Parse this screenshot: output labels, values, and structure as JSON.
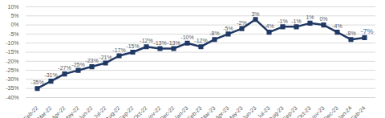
{
  "chart_data": {
    "type": "line",
    "categories": [
      "Feb-22",
      "Mar-22",
      "Apr-22",
      "May-22",
      "Jun-22",
      "Jul-22",
      "Aug-22",
      "Sep-22",
      "Oct-22",
      "Nov-22",
      "Dec-22",
      "Jan-23",
      "Feb-23",
      "Mar-23",
      "Apr-23",
      "May-23",
      "Jun-23",
      "Jul-23",
      "Aug-23",
      "Sep-23",
      "Oct-23",
      "Nov-23",
      "Dec-23",
      "Jan-24",
      "Feb-24"
    ],
    "values": [
      -35,
      -31,
      -27,
      -25,
      -23,
      -21,
      -17,
      -15,
      -12,
      -13,
      -13,
      -10,
      -12,
      -8,
      -5,
      -2,
      3,
      -4,
      -1,
      -1,
      1,
      0,
      -4,
      -8,
      -7
    ],
    "value_labels": [
      "-35%",
      "-31%",
      "-27%",
      "-25%",
      "-23%",
      "-21%",
      "-17%",
      "-15%",
      "-12%",
      "-13%",
      "-13%",
      "-10%",
      "-12%",
      "-8%",
      "-5%",
      "-2%",
      "3%",
      "-4%",
      "-1%",
      "-1%",
      "1%",
      "0%",
      "-4%",
      "-8%",
      "-7%"
    ],
    "color": "#203864",
    "marker": "square",
    "ylim": [
      -40,
      10
    ],
    "yticks": [
      {
        "value": -40,
        "label": "-40%"
      },
      {
        "value": -35,
        "label": "-35%"
      },
      {
        "value": -30,
        "label": "-30%"
      },
      {
        "value": -25,
        "label": "-25%"
      },
      {
        "value": -20,
        "label": "-20%"
      },
      {
        "value": -15,
        "label": "-15%"
      },
      {
        "value": -10,
        "label": "-10%"
      },
      {
        "value": -5,
        "label": "-5%"
      },
      {
        "value": 0,
        "label": "0%"
      },
      {
        "value": 5,
        "label": "5%"
      },
      {
        "value": 10,
        "label": "10%"
      }
    ],
    "grid": true,
    "data_labels": true
  }
}
